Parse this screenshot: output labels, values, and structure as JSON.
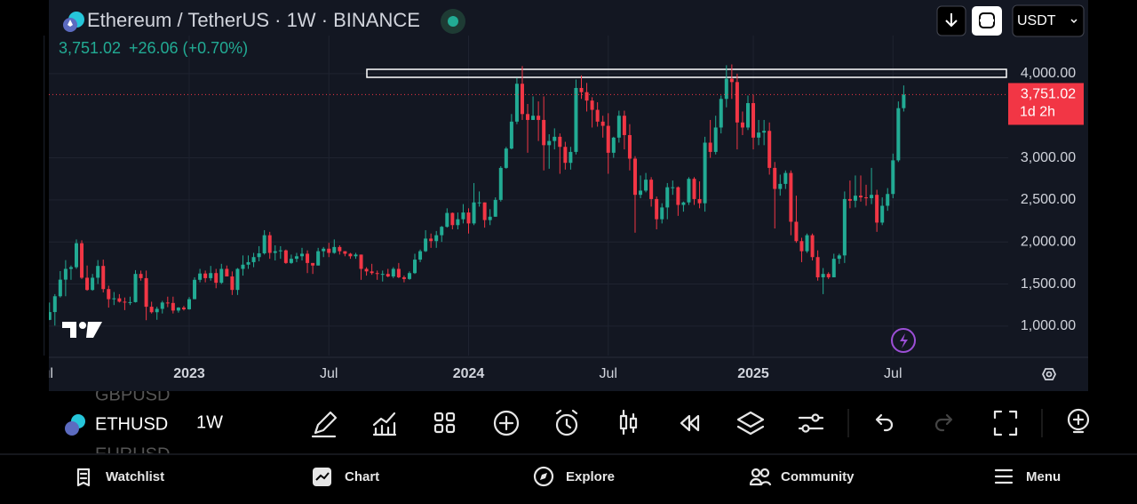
{
  "header": {
    "title": "Ethereum / TetherUS · 1W · BINANCE",
    "price": "3,751.02",
    "change": "+26.06 (+0.70%)",
    "currency": "USDT"
  },
  "chart_data": {
    "type": "candlestick",
    "up_color": "#22ab94",
    "down_color": "#f23645",
    "ylim": [
      650,
      4400
    ],
    "yticks": [
      {
        "value": 4000,
        "label": "4,000.00"
      },
      {
        "value": 3000,
        "label": "3,000.00"
      },
      {
        "value": 2500,
        "label": "2,500.00"
      },
      {
        "value": 2000,
        "label": "2,000.00"
      },
      {
        "value": 1500,
        "label": "1,500.00"
      },
      {
        "value": 1000,
        "label": "1,000.00"
      }
    ],
    "grid": true,
    "price_tag": {
      "label": "3,751.02",
      "countdown": "1d 2h"
    },
    "categories": [
      "Jul",
      null,
      null,
      null,
      null,
      null,
      null,
      null,
      null,
      null,
      null,
      null,
      null,
      null,
      null,
      null,
      null,
      null,
      null,
      null,
      null,
      null,
      null,
      null,
      null,
      null,
      null,
      "2023",
      null,
      null,
      null,
      null,
      null,
      null,
      null,
      null,
      null,
      null,
      null,
      null,
      null,
      null,
      null,
      null,
      null,
      null,
      null,
      null,
      null,
      null,
      null,
      null,
      null,
      "Jul",
      null,
      null,
      null,
      null,
      null,
      null,
      null,
      null,
      null,
      null,
      null,
      null,
      null,
      null,
      null,
      null,
      null,
      null,
      null,
      null,
      null,
      null,
      null,
      null,
      null,
      "2024",
      null,
      null,
      null,
      null,
      null,
      null,
      null,
      null,
      null,
      null,
      null,
      null,
      null,
      null,
      null,
      null,
      null,
      null,
      null,
      null,
      null,
      null,
      null,
      null,
      null,
      "Jul",
      null,
      null,
      null,
      null,
      null,
      null,
      null,
      null,
      null,
      null,
      null,
      null,
      null,
      null,
      null,
      null,
      null,
      null,
      null,
      null,
      null,
      null,
      null,
      null,
      null,
      null,
      "2025",
      null,
      null,
      null,
      null,
      null,
      null,
      null,
      null,
      null,
      null,
      null,
      null,
      null,
      null,
      null,
      null,
      null,
      null,
      null,
      null,
      null,
      null,
      null,
      null,
      null,
      "Jul",
      null,
      null
    ],
    "open": [
      1144,
      1074,
      1167,
      1355,
      1552,
      1680,
      1700,
      1985,
      1575,
      1430,
      1575,
      1715,
      1440,
      1320,
      1330,
      1290,
      1280,
      1285,
      1620,
      1570,
      1230,
      1165,
      1205,
      1280,
      1275,
      1185,
      1220,
      1200,
      1320,
      1550,
      1625,
      1570,
      1630,
      1515,
      1680,
      1590,
      1430,
      1680,
      1730,
      1760,
      1820,
      1865,
      2080,
      1870,
      1890,
      1900,
      1750,
      1800,
      1830,
      1860,
      1750,
      1720,
      1890,
      1920,
      1870,
      1940,
      1890,
      1860,
      1830,
      1850,
      1680,
      1650,
      1630,
      1620,
      1620,
      1590,
      1680,
      1580,
      1560,
      1630,
      1790,
      1890,
      2040,
      2010,
      2080,
      2180,
      2345,
      2200,
      2270,
      2350,
      2220,
      2470,
      2470,
      2260,
      2300,
      2500,
      2880,
      3110,
      3430,
      3880,
      3520,
      3450,
      3500,
      3450,
      3150,
      3200,
      3250,
      3130,
      2940,
      3070,
      3830,
      3780,
      3680,
      3570,
      3430,
      3380,
      3060,
      3240,
      3500,
      3270,
      2990,
      2560,
      2610,
      2740,
      2510,
      2270,
      2410,
      2650,
      2650,
      2440,
      2470,
      2750,
      2510,
      2460,
      3180,
      3070,
      3360,
      3700,
      3940,
      3900,
      3420,
      3360,
      3650,
      3240,
      3300,
      3320,
      2880,
      2630,
      2690,
      2820,
      2240,
      2010,
      1890,
      2080,
      1820,
      1580,
      1620,
      1580,
      1800,
      1840,
      2510,
      2490,
      2550,
      2530,
      2520,
      2560,
      2230,
      2430,
      2570,
      2970,
      3590
    ],
    "high": [
      1203,
      1280,
      1380,
      1654,
      1784,
      1720,
      2030,
      2020,
      1720,
      1620,
      1785,
      1790,
      1480,
      1405,
      1380,
      1340,
      1350,
      1665,
      1660,
      1660,
      1290,
      1230,
      1300,
      1350,
      1350,
      1225,
      1240,
      1345,
      1580,
      1680,
      1660,
      1715,
      1680,
      1740,
      1720,
      1650,
      1690,
      1840,
      1840,
      1870,
      1950,
      2140,
      2120,
      1960,
      1950,
      1910,
      1850,
      1870,
      1930,
      1900,
      1750,
      1930,
      1940,
      1990,
      2030,
      1960,
      1890,
      1870,
      1870,
      1850,
      1700,
      1740,
      1660,
      1660,
      1680,
      1700,
      1750,
      1600,
      1650,
      1860,
      1910,
      2140,
      2100,
      2130,
      2190,
      2400,
      2350,
      2350,
      2450,
      2400,
      2700,
      2600,
      2470,
      2390,
      2530,
      2900,
      3130,
      3520,
      3950,
      4090,
      3640,
      3730,
      3670,
      3730,
      3280,
      3350,
      3290,
      3190,
      3130,
      3930,
      3980,
      3890,
      3720,
      3660,
      3500,
      3530,
      3250,
      3560,
      3560,
      3400,
      3020,
      2790,
      2820,
      2770,
      2540,
      2460,
      2700,
      2730,
      2660,
      2480,
      2770,
      2770,
      2720,
      3250,
      3450,
      3500,
      3740,
      4100,
      4110,
      4000,
      3550,
      3740,
      3750,
      3450,
      3450,
      3420,
      2950,
      2800,
      2850,
      2850,
      2550,
      2050,
      2100,
      2100,
      1900,
      1690,
      1640,
      1860,
      1860,
      2600,
      2730,
      2790,
      2790,
      2680,
      2880,
      2620,
      2530,
      2640,
      3050,
      3670,
      3860
    ],
    "low": [
      1003,
      1071,
      1006,
      1340,
      1355,
      1550,
      1680,
      1560,
      1420,
      1420,
      1500,
      1400,
      1220,
      1250,
      1280,
      1190,
      1250,
      1280,
      1540,
      1070,
      1150,
      1075,
      1150,
      1225,
      1150,
      1160,
      1185,
      1195,
      1320,
      1520,
      1520,
      1540,
      1450,
      1500,
      1590,
      1370,
      1370,
      1600,
      1680,
      1700,
      1770,
      1850,
      1800,
      1780,
      1800,
      1740,
      1740,
      1760,
      1780,
      1630,
      1620,
      1720,
      1820,
      1820,
      1860,
      1850,
      1830,
      1800,
      1800,
      1550,
      1600,
      1610,
      1550,
      1530,
      1580,
      1570,
      1570,
      1520,
      1550,
      1620,
      1760,
      1880,
      1930,
      1930,
      2000,
      2170,
      2150,
      2150,
      2220,
      2100,
      2200,
      2420,
      2170,
      2200,
      2300,
      2480,
      2870,
      3100,
      3400,
      3450,
      3060,
      3450,
      3200,
      2850,
      2870,
      3100,
      2810,
      2860,
      2860,
      3040,
      3700,
      3550,
      3360,
      3370,
      3240,
      2810,
      3000,
      3180,
      3100,
      2850,
      2110,
      2520,
      2590,
      2420,
      2150,
      2220,
      2270,
      2560,
      2310,
      2360,
      2440,
      2440,
      2400,
      2360,
      3000,
      3040,
      3290,
      3600,
      3700,
      3100,
      3270,
      3330,
      3100,
      3150,
      3150,
      2800,
      2160,
      2550,
      2630,
      2080,
      1990,
      1760,
      1870,
      1780,
      1540,
      1380,
      1560,
      1580,
      1740,
      1750,
      2400,
      2410,
      2480,
      2430,
      2450,
      2120,
      2200,
      2370,
      2520,
      2950,
      3550
    ],
    "close": [
      1074,
      1167,
      1355,
      1552,
      1680,
      1700,
      1985,
      1575,
      1430,
      1575,
      1715,
      1440,
      1320,
      1330,
      1290,
      1280,
      1285,
      1620,
      1570,
      1230,
      1165,
      1205,
      1280,
      1275,
      1185,
      1220,
      1200,
      1320,
      1550,
      1625,
      1570,
      1630,
      1515,
      1680,
      1590,
      1430,
      1680,
      1730,
      1760,
      1820,
      1865,
      2080,
      1870,
      1890,
      1900,
      1750,
      1800,
      1830,
      1860,
      1750,
      1720,
      1890,
      1920,
      1870,
      1940,
      1890,
      1860,
      1830,
      1850,
      1680,
      1650,
      1630,
      1620,
      1620,
      1590,
      1680,
      1580,
      1560,
      1630,
      1790,
      1890,
      2040,
      2010,
      2080,
      2180,
      2345,
      2200,
      2270,
      2350,
      2220,
      2470,
      2470,
      2260,
      2300,
      2500,
      2880,
      3110,
      3430,
      3880,
      3520,
      3450,
      3500,
      3450,
      3150,
      3200,
      3250,
      3130,
      2940,
      3070,
      3830,
      3780,
      3680,
      3570,
      3430,
      3380,
      3060,
      3240,
      3500,
      3270,
      2990,
      2560,
      2610,
      2740,
      2510,
      2270,
      2410,
      2650,
      2650,
      2440,
      2470,
      2750,
      2510,
      2460,
      3180,
      3070,
      3360,
      3700,
      3940,
      3900,
      3420,
      3360,
      3650,
      3240,
      3300,
      3320,
      2880,
      2630,
      2690,
      2820,
      2240,
      2010,
      1890,
      2080,
      1820,
      1580,
      1620,
      1580,
      1800,
      1840,
      2510,
      2490,
      2550,
      2530,
      2520,
      2560,
      2230,
      2430,
      2570,
      2970,
      3590,
      3751.02
    ]
  },
  "toolbar": {
    "symbol": "ETHUSD",
    "interval": "1W",
    "ghost_symbols": [
      "GBPUSD",
      "EURUSD"
    ]
  },
  "nav": [
    "Watchlist",
    "Chart",
    "Explore",
    "Community",
    "Menu"
  ]
}
